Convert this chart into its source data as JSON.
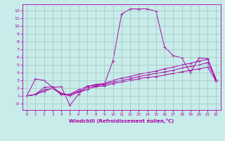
{
  "xlabel": "Windchill (Refroidissement éolien,°C)",
  "bg_color": "#c8ecea",
  "line_color": "#aa00aa",
  "grid_color": "#9ab8b8",
  "xlim": [
    -0.5,
    22.5
  ],
  "ylim": [
    -0.8,
    12.8
  ],
  "xticks": [
    0,
    1,
    2,
    3,
    4,
    5,
    6,
    7,
    8,
    9,
    10,
    11,
    12,
    13,
    14,
    15,
    16,
    17,
    18,
    19,
    20,
    21,
    22
  ],
  "yticks": [
    0,
    1,
    2,
    3,
    4,
    5,
    6,
    7,
    8,
    9,
    10,
    11,
    12
  ],
  "ytick_labels": [
    "-0",
    "1",
    "2",
    "3",
    "4",
    "5",
    "6",
    "7",
    "8",
    "9",
    "10",
    "11",
    "12"
  ],
  "lines": [
    [
      1.0,
      3.2,
      3.0,
      2.1,
      2.2,
      -0.2,
      1.2,
      2.3,
      2.4,
      2.5,
      5.5,
      11.5,
      12.2,
      12.2,
      12.2,
      11.9,
      7.3,
      6.2,
      5.9,
      4.0,
      5.9,
      5.8,
      3.1
    ],
    [
      1.0,
      1.2,
      2.1,
      2.2,
      1.2,
      1.2,
      1.8,
      2.2,
      2.5,
      2.6,
      3.0,
      3.3,
      3.5,
      3.8,
      4.0,
      4.2,
      4.5,
      4.7,
      5.0,
      5.2,
      5.5,
      5.7,
      3.1
    ],
    [
      1.0,
      1.2,
      1.8,
      2.0,
      1.2,
      1.2,
      1.6,
      2.0,
      2.3,
      2.5,
      2.8,
      3.0,
      3.2,
      3.5,
      3.7,
      3.9,
      4.1,
      4.3,
      4.6,
      4.8,
      5.0,
      5.3,
      3.0
    ],
    [
      1.0,
      1.2,
      1.6,
      2.0,
      1.4,
      1.0,
      1.5,
      1.8,
      2.2,
      2.3,
      2.6,
      2.8,
      3.0,
      3.2,
      3.4,
      3.5,
      3.7,
      3.9,
      4.1,
      4.3,
      4.5,
      4.7,
      2.9
    ]
  ]
}
